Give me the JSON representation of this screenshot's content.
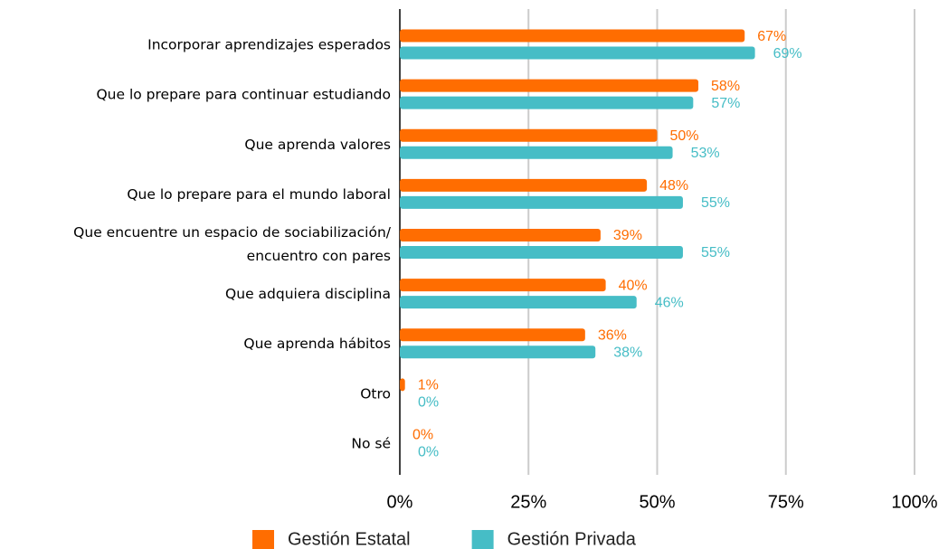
{
  "chart_data": {
    "type": "barh",
    "categories": [
      "Incorporar aprendizajes esperados",
      "Que lo prepare para continuar estudiando",
      "Que aprenda valores",
      "Que lo prepare para el mundo laboral",
      "Que encuentre un espacio de sociabilización/\nencuentro con pares",
      "Que adquiera disciplina",
      "Que aprenda hábitos",
      "Otro",
      "No sé"
    ],
    "series": [
      {
        "name": "Gestión Estatal",
        "color": "#ff6d01",
        "values": [
          67,
          58,
          50,
          48,
          39,
          40,
          36,
          1,
          0
        ],
        "value_labels": [
          "67%",
          "58%",
          "50%",
          "48%",
          "39%",
          "40%",
          "36%",
          "1%",
          "0%"
        ]
      },
      {
        "name": "Gestión Privada",
        "color": "#46bdc6",
        "values": [
          69,
          57,
          53,
          55,
          55,
          46,
          38,
          0,
          0
        ],
        "value_labels": [
          "69%",
          "57%",
          "53%",
          "55%",
          "55%",
          "46%",
          "38%",
          "0%",
          "0%"
        ]
      }
    ],
    "xlim": [
      0,
      100
    ],
    "xticks": [
      {
        "value": 0,
        "label": "0%"
      },
      {
        "value": 25,
        "label": "25%"
      },
      {
        "value": 50,
        "label": "50%"
      },
      {
        "value": 75,
        "label": "75%"
      },
      {
        "value": 100,
        "label": "100%"
      }
    ],
    "grid": true,
    "legend": "bottom"
  }
}
